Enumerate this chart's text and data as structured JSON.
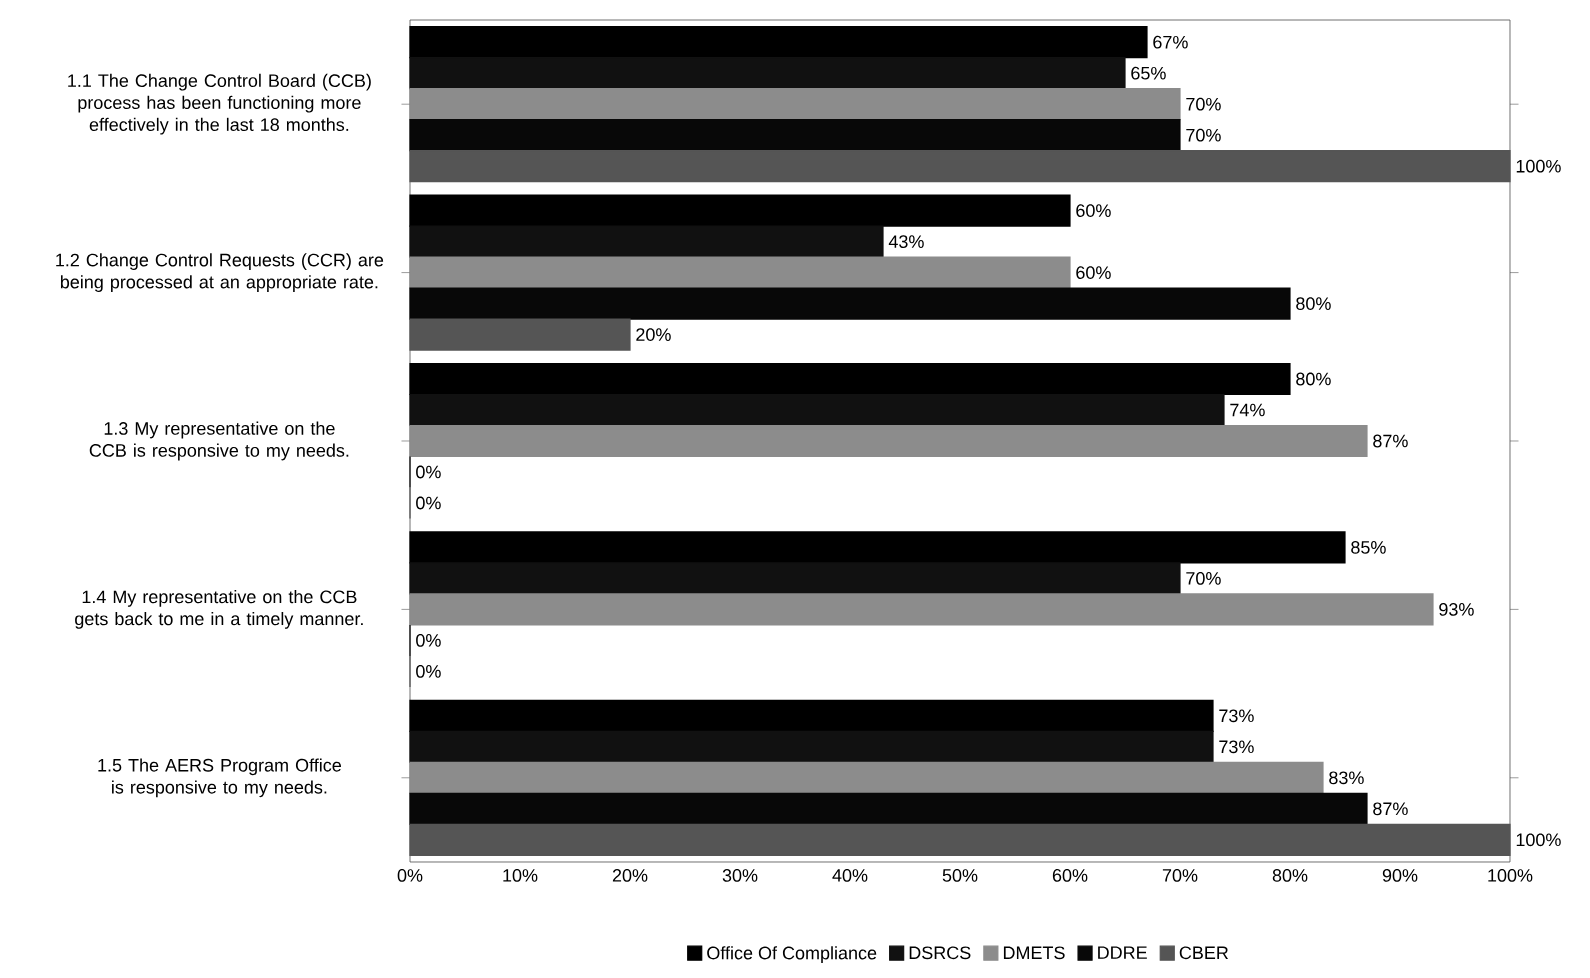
{
  "chart_data": {
    "type": "bar",
    "orientation": "horizontal",
    "categories": [
      "1.1 The Change Control Board (CCB) process has been functioning more effectively in the last 18 months.",
      "1.2 Change Control Requests (CCR) are being processed at an appropriate rate.",
      "1.3 My representative on the CCB is responsive to my needs.",
      "1.4 My representative on the CCB gets back to me in a timely manner.",
      "1.5 The AERS Program Office is responsive to my needs."
    ],
    "series": [
      {
        "name": "Office Of Compliance",
        "color": "#000000",
        "values": [
          67,
          60,
          80,
          85,
          73
        ],
        "value_labels": [
          "67%",
          "60%",
          "80%",
          "85%",
          "73%"
        ]
      },
      {
        "name": "DSRCS",
        "color": "#111111",
        "values": [
          65,
          43,
          74,
          70,
          73
        ],
        "value_labels": [
          "65%",
          "43%",
          "74%",
          "70%",
          "73%"
        ]
      },
      {
        "name": "DMETS",
        "color": "#8c8c8c",
        "values": [
          70,
          60,
          87,
          93,
          83
        ],
        "value_labels": [
          "70%",
          "60%",
          "87%",
          "93%",
          "83%"
        ]
      },
      {
        "name": "DDRE",
        "color": "#080808",
        "values": [
          70,
          80,
          0,
          0,
          87
        ],
        "value_labels": [
          "70%",
          "80%",
          "0%",
          "0%",
          "87%"
        ]
      },
      {
        "name": "CBER",
        "color": "#555555",
        "values": [
          100,
          20,
          0,
          0,
          100
        ],
        "value_labels": [
          "100%",
          "20%",
          "0%",
          "0%",
          "100%"
        ]
      }
    ],
    "xlim": [
      0,
      100
    ],
    "xticks": [
      {
        "value": 0,
        "label": "0%"
      },
      {
        "value": 10,
        "label": "10%"
      },
      {
        "value": 20,
        "label": "20%"
      },
      {
        "value": 30,
        "label": "30%"
      },
      {
        "value": 40,
        "label": "40%"
      },
      {
        "value": 50,
        "label": "50%"
      },
      {
        "value": 60,
        "label": "60%"
      },
      {
        "value": 70,
        "label": "70%"
      },
      {
        "value": 80,
        "label": "80%"
      },
      {
        "value": 90,
        "label": "90%"
      },
      {
        "value": 100,
        "label": "100%"
      }
    ],
    "legend": "bottom",
    "grid": false
  }
}
